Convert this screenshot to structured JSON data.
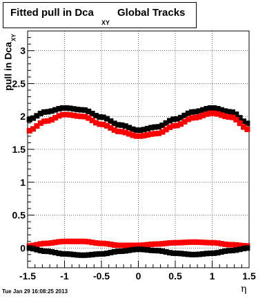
{
  "page": {
    "title_main": "Fitted pull in Dca",
    "title_sub": "XY",
    "title_rest": "Global Tracks",
    "ylabel_main": "pull in Dca",
    "ylabel_sub": "XY",
    "xlabel": "η",
    "timestamp": "Tue Jan 29 16:08:25 2013"
  },
  "chart_data": {
    "type": "scatter",
    "title": "Fitted pull in Dca XY Global Tracks",
    "xlabel": "η",
    "ylabel": "pull in Dca XY",
    "xlim": [
      -1.5,
      1.5
    ],
    "ylim": [
      -0.3,
      3.3
    ],
    "xticks": [
      -1.5,
      -1,
      -0.5,
      0,
      0.5,
      1,
      1.5
    ],
    "xtick_labels": [
      "-1.5",
      "-1",
      "-0.5",
      "0",
      "0.5",
      "1",
      "1.5"
    ],
    "yticks": [
      0,
      0.5,
      1,
      1.5,
      2,
      2.5,
      3
    ],
    "ytick_labels": [
      "0",
      "0.5",
      "1",
      "1.5",
      "2",
      "2.5",
      "3"
    ],
    "grid": true,
    "legend": "none",
    "series": [
      {
        "color": "#000000",
        "x": [
          -1.5,
          -1.25,
          -1.0,
          -0.75,
          -0.5,
          -0.25,
          0.0,
          0.25,
          0.5,
          0.75,
          1.0,
          1.25,
          1.5
        ],
        "values": [
          1.95,
          2.07,
          2.13,
          2.1,
          1.99,
          1.87,
          1.79,
          1.84,
          1.96,
          2.07,
          2.13,
          2.07,
          1.89
        ]
      },
      {
        "color": "#ff0000",
        "x": [
          -1.5,
          -1.25,
          -1.0,
          -0.75,
          -0.5,
          -0.25,
          0.0,
          0.25,
          0.5,
          0.75,
          1.0,
          1.25,
          1.5
        ],
        "values": [
          1.78,
          1.93,
          2.03,
          2.0,
          1.88,
          1.77,
          1.7,
          1.74,
          1.86,
          1.98,
          2.05,
          1.99,
          1.8
        ]
      },
      {
        "color": "#ff0000",
        "x": [
          -1.5,
          -1.25,
          -1.0,
          -0.75,
          -0.5,
          -0.25,
          0.0,
          0.25,
          0.5,
          0.75,
          1.0,
          1.25,
          1.5
        ],
        "values": [
          0.03,
          0.07,
          0.1,
          0.1,
          0.07,
          0.04,
          0.04,
          0.06,
          0.08,
          0.09,
          0.08,
          0.05,
          0.03
        ]
      },
      {
        "color": "#000000",
        "x": [
          -1.5,
          -1.25,
          -1.0,
          -0.75,
          -0.5,
          -0.25,
          0.0,
          0.25,
          0.5,
          0.75,
          1.0,
          1.25,
          1.5
        ],
        "values": [
          0.0,
          -0.05,
          -0.09,
          -0.11,
          -0.09,
          -0.05,
          -0.02,
          -0.04,
          -0.08,
          -0.1,
          -0.08,
          -0.04,
          0.0
        ]
      }
    ]
  }
}
